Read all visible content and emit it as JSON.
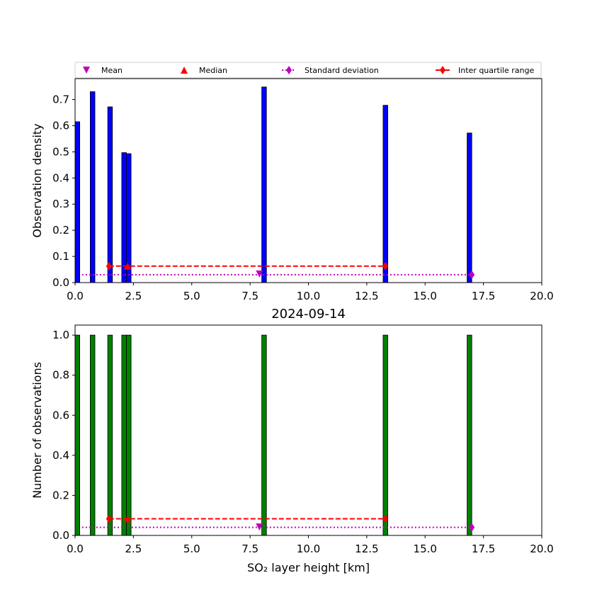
{
  "chart_data": [
    {
      "type": "bar",
      "ylabel": "Observation density",
      "title": "",
      "xlim": [
        0,
        20
      ],
      "ylim": [
        0,
        0.78
      ],
      "xticks": [
        0,
        2.5,
        5,
        7.5,
        10,
        12.5,
        15,
        17.5,
        20
      ],
      "xtick_labels": [
        "0.0",
        "2.5",
        "5.0",
        "7.5",
        "10.0",
        "12.5",
        "15.0",
        "17.5",
        "20.0"
      ],
      "yticks": [
        0,
        0.1,
        0.2,
        0.3,
        0.4,
        0.5,
        0.6,
        0.7
      ],
      "ytick_labels": [
        "0.0",
        "0.1",
        "0.2",
        "0.3",
        "0.4",
        "0.5",
        "0.6",
        "0.7"
      ],
      "bar_color": "#0000ff",
      "bar_width": 0.2,
      "bars": [
        {
          "x": 0.1,
          "value": 0.615
        },
        {
          "x": 0.75,
          "value": 0.73
        },
        {
          "x": 1.5,
          "value": 0.672
        },
        {
          "x": 2.1,
          "value": 0.497
        },
        {
          "x": 2.3,
          "value": 0.493
        },
        {
          "x": 8.1,
          "value": 0.748
        },
        {
          "x": 13.3,
          "value": 0.678
        },
        {
          "x": 16.9,
          "value": 0.572
        }
      ],
      "mean": {
        "x": 7.9,
        "y": 0.033
      },
      "median": {
        "x": 2.25,
        "y": 0.063
      },
      "std": {
        "x": [
          0.3,
          17.0
        ],
        "y": 0.03
      },
      "iqr": {
        "x": [
          1.45,
          13.3
        ],
        "y": 0.063
      },
      "legend": {
        "placement": "top",
        "items": [
          {
            "label": "Mean",
            "marker": "triangle-down",
            "color": "#bf00bf"
          },
          {
            "label": "Median",
            "marker": "triangle-up",
            "color": "#ff0000"
          },
          {
            "label": "Standard deviation",
            "marker": "diamond-dotted",
            "color": "#bf00bf"
          },
          {
            "label": "Inter quartile range",
            "marker": "diamond-dashed",
            "color": "#ff0000"
          }
        ]
      }
    },
    {
      "type": "bar",
      "title": "2024-09-14",
      "xlabel": "SO₂ layer height [km]",
      "ylabel": "Number of observations",
      "xlim": [
        0,
        20
      ],
      "ylim": [
        0,
        1.05
      ],
      "xticks": [
        0,
        2.5,
        5,
        7.5,
        10,
        12.5,
        15,
        17.5,
        20
      ],
      "xtick_labels": [
        "0.0",
        "2.5",
        "5.0",
        "7.5",
        "10.0",
        "12.5",
        "15.0",
        "17.5",
        "20.0"
      ],
      "yticks": [
        0,
        0.2,
        0.4,
        0.6,
        0.8,
        1.0
      ],
      "ytick_labels": [
        "0.0",
        "0.2",
        "0.4",
        "0.6",
        "0.8",
        "1.0"
      ],
      "bar_color": "#008000",
      "bar_width": 0.2,
      "bars": [
        {
          "x": 0.1,
          "value": 1
        },
        {
          "x": 0.75,
          "value": 1
        },
        {
          "x": 1.5,
          "value": 1
        },
        {
          "x": 2.1,
          "value": 1
        },
        {
          "x": 2.3,
          "value": 1
        },
        {
          "x": 8.1,
          "value": 1
        },
        {
          "x": 13.3,
          "value": 1
        },
        {
          "x": 16.9,
          "value": 1
        }
      ],
      "mean": {
        "x": 7.9,
        "y": 0.042
      },
      "median": {
        "x": 2.25,
        "y": 0.083
      },
      "std": {
        "x": [
          0.3,
          17.0
        ],
        "y": 0.04
      },
      "iqr": {
        "x": [
          1.45,
          13.3
        ],
        "y": 0.083
      }
    }
  ]
}
